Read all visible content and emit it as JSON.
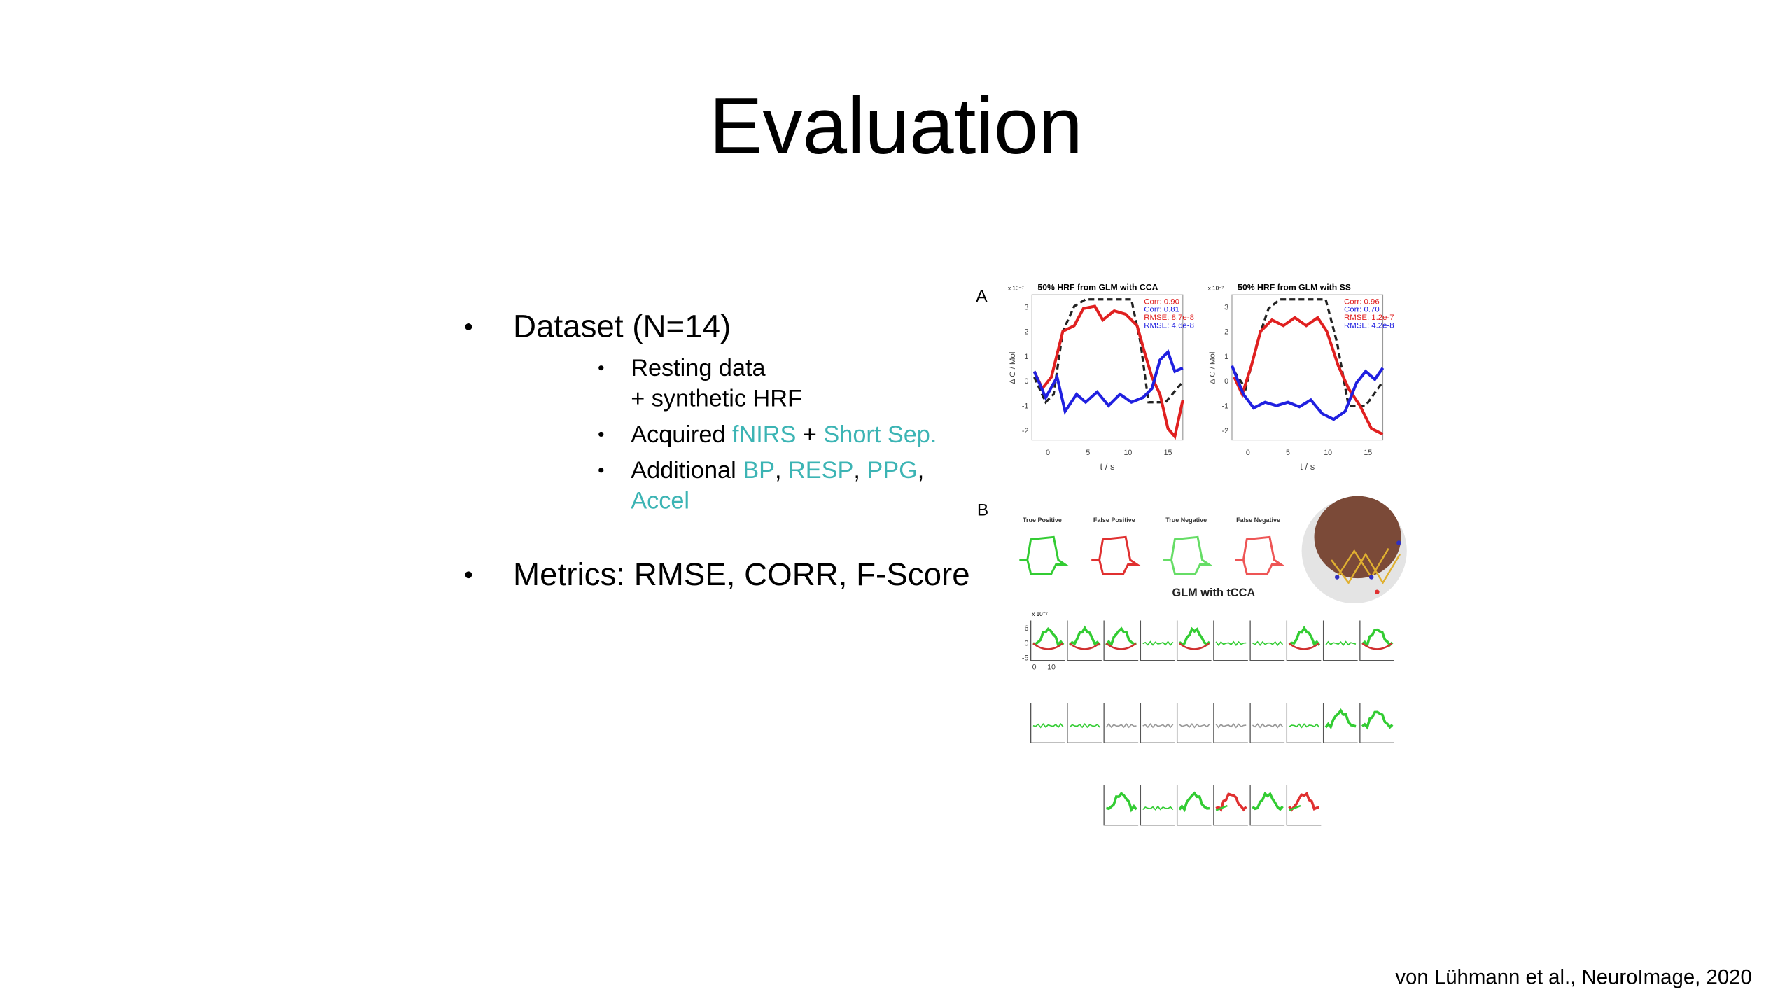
{
  "title": "Evaluation",
  "bullets": [
    {
      "lines": [
        [
          "Dataset (N=14)"
        ]
      ],
      "sub": [
        {
          "lines": [
            [
              "Resting data"
            ],
            [
              "+ synthetic HRF"
            ]
          ]
        },
        {
          "lines": [
            [
              "Acquired ",
              {
                "text": "fNIRS",
                "color": "#3cb4b4"
              },
              " + ",
              {
                "text": "Short Sep.",
                "color": "#3cb4b4"
              }
            ]
          ]
        },
        {
          "lines": [
            [
              "Additional ",
              {
                "text": "BP",
                "color": "#3cb4b4"
              },
              ", ",
              {
                "text": "RESP",
                "color": "#3cb4b4"
              },
              ", ",
              {
                "text": "PPG",
                "color": "#3cb4b4"
              },
              ","
            ],
            [
              {
                "text": "Accel",
                "color": "#3cb4b4"
              }
            ]
          ]
        }
      ]
    },
    {
      "lines": [
        [
          "Metrics: RMSE, CORR, F-Score"
        ]
      ],
      "sub": []
    }
  ],
  "citation": "von Lühmann et al., NeuroImage, 2020",
  "figure": {
    "panel_a": {
      "label": "A",
      "charts": [
        {
          "title": "50% HRF from GLM with CCA",
          "scale": "x 10⁻⁷",
          "ylabel": "Δ C / Mol",
          "xlabel": "t / s",
          "stats": [
            {
              "text": "Corr: 0.90",
              "color": "#e02020"
            },
            {
              "text": "Corr: 0.81",
              "color": "#2020e0"
            },
            {
              "text": "RMSE: 8.7e-8",
              "color": "#e02020"
            },
            {
              "text": "RMSE: 4.6e-8",
              "color": "#2020e0"
            }
          ],
          "xticks": [
            "0",
            "5",
            "10",
            "15"
          ],
          "yticks": [
            "3",
            "2",
            "1",
            "0",
            "-1",
            "-2"
          ]
        },
        {
          "title": "50% HRF from GLM with SS",
          "scale": "x 10⁻⁷",
          "ylabel": "Δ C / Mol",
          "xlabel": "t / s",
          "stats": [
            {
              "text": "Corr: 0.96",
              "color": "#e02020"
            },
            {
              "text": "Corr: 0.70",
              "color": "#2020e0"
            },
            {
              "text": "RMSE: 1.2e-7",
              "color": "#e02020"
            },
            {
              "text": "RMSE: 4.2e-8",
              "color": "#2020e0"
            }
          ],
          "xticks": [
            "0",
            "5",
            "10",
            "15"
          ],
          "yticks": [
            "3",
            "2",
            "1",
            "0",
            "-1",
            "-2"
          ]
        }
      ]
    },
    "panel_b": {
      "label": "B",
      "classes": [
        {
          "text": "True Positive",
          "color": "#33cc33"
        },
        {
          "text": "False Positive",
          "color": "#e03030"
        },
        {
          "text": "True Negative",
          "color": "#66dd66"
        },
        {
          "text": "False Negative",
          "color": "#ee5555"
        }
      ],
      "method": "GLM with tCCA",
      "scale": "x 10⁻⁷",
      "yticks": [
        "6",
        "0",
        "-5"
      ],
      "xticks": [
        "0",
        "10"
      ]
    }
  }
}
